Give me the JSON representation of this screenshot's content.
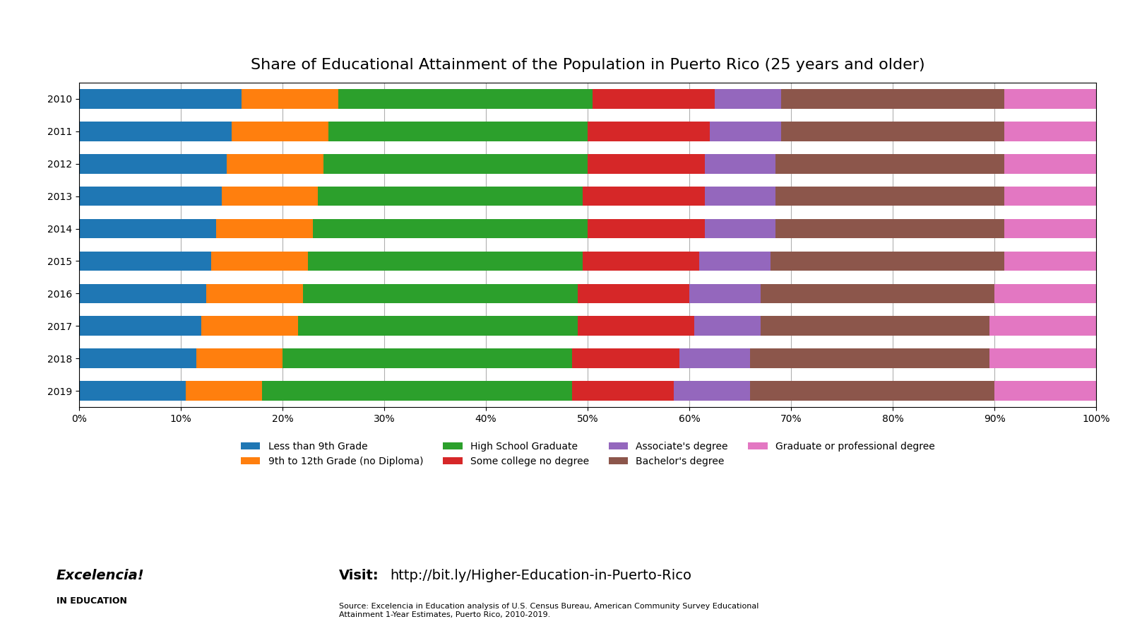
{
  "chart_data": {
    "type": "bar",
    "title": "Share of Educational Attainment of the Population in Puerto Rico (25 years and older)",
    "orientation": "horizontal",
    "stacked": true,
    "grid": true,
    "legend": "upper center",
    "categories": [
      "2010",
      "2011",
      "2012",
      "2013",
      "2014",
      "2015",
      "2016",
      "2017",
      "2018",
      "2019"
    ],
    "series": [
      {
        "name": "Less than 9th Grade",
        "values": [
          16.0,
          15.0,
          14.5,
          14.0,
          13.5,
          13.0,
          12.5,
          12.0,
          11.5,
          10.5
        ]
      },
      {
        "name": "9th to 12th Grade (no Diploma)",
        "values": [
          9.5,
          9.5,
          9.5,
          9.5,
          9.5,
          9.5,
          9.5,
          9.5,
          8.5,
          7.5
        ]
      },
      {
        "name": "High School Graduate",
        "values": [
          25.0,
          25.5,
          26.0,
          26.0,
          27.0,
          27.0,
          27.0,
          27.5,
          28.5,
          30.5
        ]
      },
      {
        "name": "Some college no degree",
        "values": [
          12.0,
          12.0,
          11.5,
          12.0,
          11.5,
          11.5,
          11.0,
          11.5,
          10.5,
          10.0
        ]
      },
      {
        "name": "Associate's degree",
        "values": [
          6.5,
          7.0,
          7.0,
          7.0,
          7.0,
          7.0,
          7.0,
          6.5,
          7.0,
          7.5
        ]
      },
      {
        "name": "Bachelor's degree",
        "values": [
          22.0,
          22.0,
          22.5,
          22.5,
          22.5,
          23.0,
          23.0,
          22.5,
          23.5,
          24.0
        ]
      },
      {
        "name": "Graduate or professional degree",
        "values": [
          9.0,
          9.0,
          9.0,
          9.0,
          9.0,
          9.0,
          10.0,
          10.5,
          10.5,
          10.0
        ]
      }
    ],
    "xlim": [
      0,
      100
    ],
    "xticks": [
      {
        "value": 0,
        "label": "0%"
      },
      {
        "value": 10,
        "label": "10%"
      },
      {
        "value": 20,
        "label": "20%"
      },
      {
        "value": 30,
        "label": "30%"
      },
      {
        "value": 40,
        "label": "40%"
      },
      {
        "value": 50,
        "label": "50%"
      },
      {
        "value": 60,
        "label": "60%"
      },
      {
        "value": 70,
        "label": "70%"
      },
      {
        "value": 80,
        "label": "80%"
      },
      {
        "value": 90,
        "label": "90%"
      },
      {
        "value": 100,
        "label": "100%"
      }
    ],
    "annotations": [
      "Excelencia!",
      "IN EDUCATION",
      "Visit:",
      "http://bit.ly/Higher-Education-in-Puerto-Rico",
      "Source: Excelencia in Education analysis of U.S. Census Bureau, American Community Survey Educational\nAttainment 1-Year Estimates, Puerto Rico, 2010-2019."
    ]
  }
}
